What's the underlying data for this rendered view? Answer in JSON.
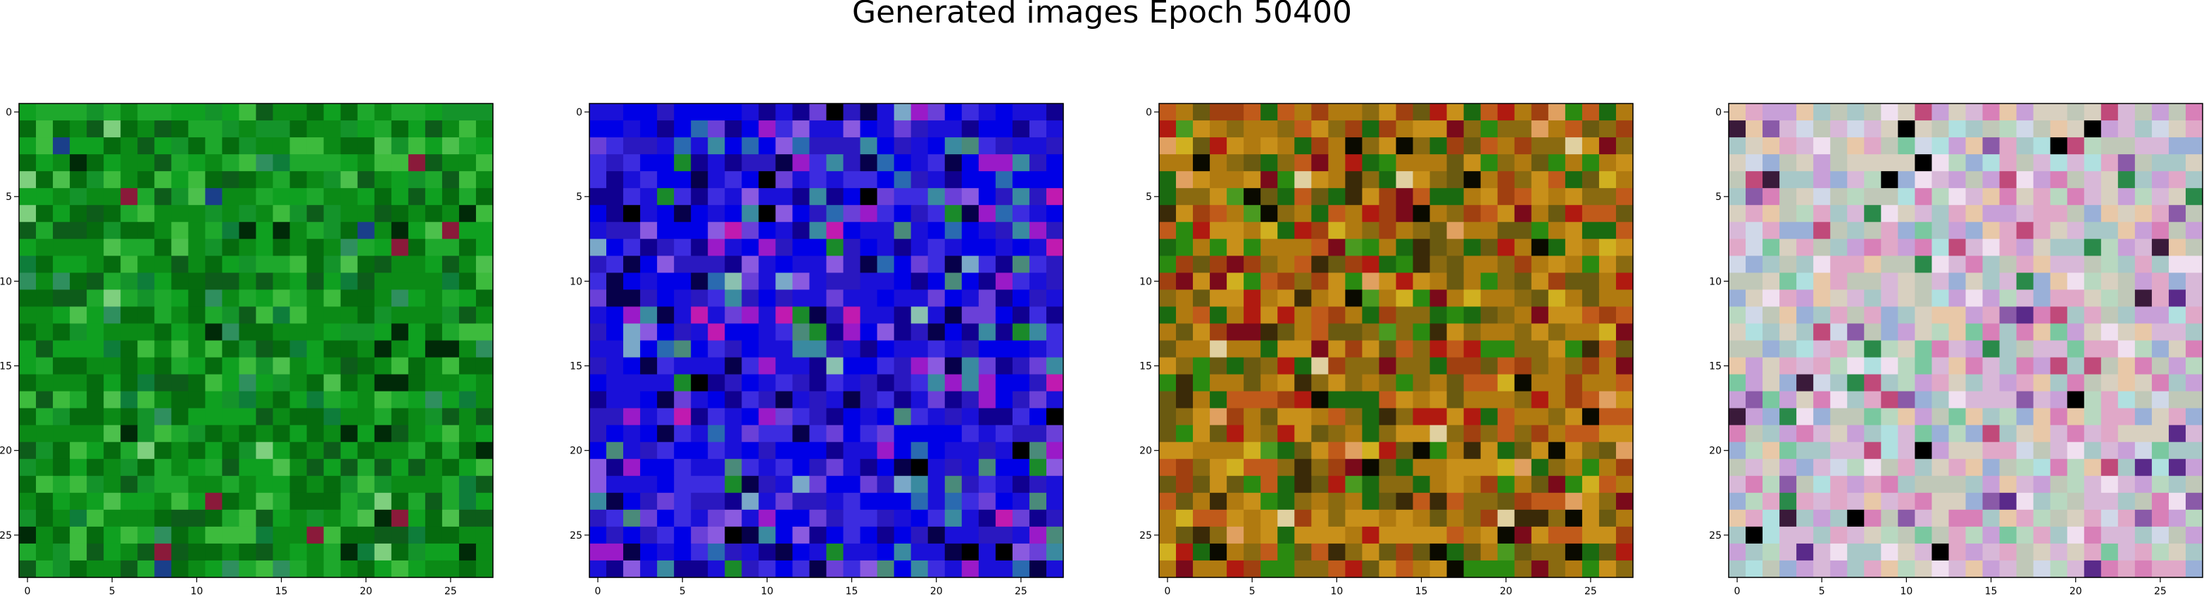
{
  "figure": {
    "title": "Generated images Epoch 50400"
  },
  "chart_data": [
    {
      "type": "heatmap",
      "subject": "generated-image-1",
      "grid": [
        28,
        28
      ],
      "xlim": [
        -0.5,
        27.5
      ],
      "ylim": [
        27.5,
        -0.5
      ],
      "x_ticks": [
        0,
        5,
        10,
        15,
        20,
        25
      ],
      "y_ticks": [
        0,
        5,
        10,
        15,
        20,
        25
      ],
      "palette": {
        "base": "#0a7a14",
        "colors": [
          "#0b8a16",
          "#056b0e",
          "#0fa020",
          "#1ea82c",
          "#3dbb3d",
          "#0d5c1a",
          "#14932a",
          "#002a08",
          "#2f8f5e",
          "#4cc04c",
          "#0e7d3a",
          "#7ecf7e",
          "#1a3f8a",
          "#8a1a3a"
        ],
        "weights": [
          20,
          20,
          14,
          10,
          6,
          8,
          10,
          3,
          3,
          3,
          3,
          1,
          1,
          1
        ]
      },
      "seed": 11
    },
    {
      "type": "heatmap",
      "subject": "generated-image-2",
      "grid": [
        28,
        28
      ],
      "xlim": [
        -0.5,
        27.5
      ],
      "ylim": [
        27.5,
        -0.5
      ],
      "x_ticks": [
        0,
        5,
        10,
        15,
        20,
        25
      ],
      "y_ticks": [
        0,
        5,
        10,
        15,
        20,
        25
      ],
      "palette": {
        "base": "#1a10c8",
        "colors": [
          "#1a10d8",
          "#0000e6",
          "#2a18c0",
          "#3c2ce0",
          "#100090",
          "#06004a",
          "#6a40d8",
          "#8a5ae0",
          "#9a1ac8",
          "#2a6ab0",
          "#3a8aa0",
          "#7aa8c8",
          "#4a8a7a",
          "#000000",
          "#8ac0b0",
          "#c01ab0",
          "#1a8a2a"
        ],
        "weights": [
          22,
          18,
          12,
          10,
          8,
          6,
          5,
          4,
          4,
          3,
          3,
          2,
          2,
          2,
          1,
          1,
          1
        ]
      },
      "seed": 29
    },
    {
      "type": "heatmap",
      "subject": "generated-image-3",
      "grid": [
        28,
        28
      ],
      "xlim": [
        -0.5,
        27.5
      ],
      "ylim": [
        27.5,
        -0.5
      ],
      "x_ticks": [
        0,
        5,
        10,
        15,
        20,
        25
      ],
      "y_ticks": [
        0,
        5,
        10,
        15,
        20,
        25
      ],
      "palette": {
        "base": "#8a6a10",
        "colors": [
          "#b07a10",
          "#c8901a",
          "#8a6a10",
          "#6a5a10",
          "#a04010",
          "#c05a1a",
          "#1a6a10",
          "#2a8a10",
          "#b01a10",
          "#3a2a08",
          "#e0a060",
          "#7a0a1a",
          "#d0b020",
          "#0a0a00",
          "#e0d0a0",
          "#4a9a20"
        ],
        "weights": [
          16,
          12,
          12,
          10,
          8,
          8,
          6,
          6,
          4,
          4,
          3,
          3,
          3,
          2,
          1,
          2
        ]
      },
      "seed": 47
    },
    {
      "type": "heatmap",
      "subject": "generated-image-4",
      "grid": [
        28,
        28
      ],
      "xlim": [
        -0.5,
        27.5
      ],
      "ylim": [
        27.5,
        -0.5
      ],
      "x_ticks": [
        0,
        5,
        10,
        15,
        20,
        25
      ],
      "y_ticks": [
        0,
        5,
        10,
        15,
        20,
        25
      ],
      "palette": {
        "base": "#c8b0c8",
        "colors": [
          "#d8b8d8",
          "#c0c8b8",
          "#e0a8c8",
          "#a8c8c8",
          "#d8d0c0",
          "#c8a0d8",
          "#b8d8c0",
          "#e8c8a8",
          "#9ab0d8",
          "#d880b8",
          "#7ac8a0",
          "#c04a7a",
          "#3a1a3a",
          "#2a8a4a",
          "#000000",
          "#b0e0e0",
          "#f0e0f0",
          "#8a5aa8",
          "#5a2a8a",
          "#d0d8e8"
        ],
        "weights": [
          14,
          12,
          10,
          10,
          10,
          8,
          8,
          6,
          4,
          4,
          3,
          2,
          1,
          1,
          1,
          4,
          4,
          2,
          1,
          3
        ]
      },
      "seed": 83
    }
  ]
}
